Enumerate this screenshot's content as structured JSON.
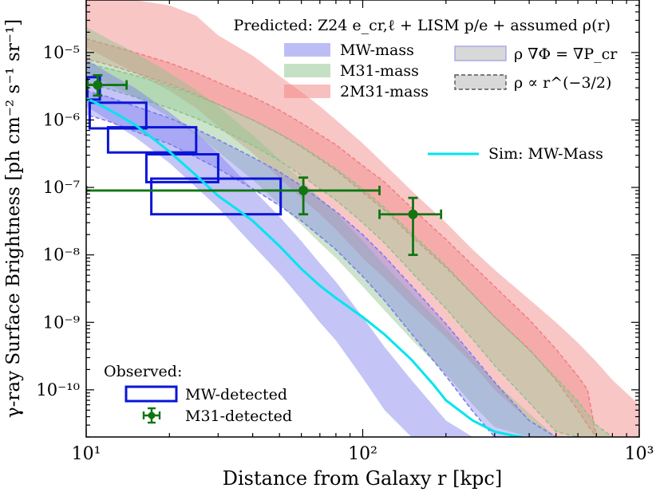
{
  "chart_data": {
    "type": "line",
    "xlabel": "Distance from Galaxy r [kpc]",
    "ylabel": "γ-ray Surface Brightness [ph cm⁻² s⁻¹ sr⁻¹]",
    "x_scale": "log",
    "y_scale": "log",
    "xlim": [
      10,
      1000
    ],
    "ylim": [
      2e-11,
      6e-05
    ],
    "x_ticks": [
      {
        "value": 10,
        "label": "10¹"
      },
      {
        "value": 100,
        "label": "10²"
      },
      {
        "value": 1000,
        "label": "10³"
      }
    ],
    "y_ticks": [
      {
        "value": 1e-10,
        "label": "10⁻¹⁰"
      },
      {
        "value": 1e-09,
        "label": "10⁻⁹"
      },
      {
        "value": 1e-08,
        "label": "10⁻⁸"
      },
      {
        "value": 1e-07,
        "label": "10⁻⁷"
      },
      {
        "value": 1e-06,
        "label": "10⁻⁶"
      },
      {
        "value": 1e-05,
        "label": "10⁻⁵"
      }
    ],
    "legend_title": "Predicted: Z24 e_cr,ℓ + LISM p/e + assumed ρ(r)",
    "legend_entries": [
      {
        "label": "MW-mass",
        "color": "#7c7cee"
      },
      {
        "label": "M31-mass",
        "color": "#8cc48c"
      },
      {
        "label": "2M31-mass",
        "color": "#f28080"
      },
      {
        "label": "ρ ∇Φ = ∇P_cr",
        "style": "solid-band"
      },
      {
        "label": "ρ ∝ r^(−3/2)",
        "style": "dashed-band"
      }
    ],
    "sim_label": "Sim: MW-Mass",
    "observed_title": "Observed:",
    "observed_entries": [
      {
        "label": "MW-detected",
        "color": "#0a14d8"
      },
      {
        "label": "M31-detected",
        "color": "#117511"
      }
    ],
    "bands": [
      {
        "name": "2M31-mass",
        "style": "solid",
        "color": "#f28080",
        "x": [
          10,
          12,
          15,
          20,
          25,
          30,
          40,
          50,
          60,
          70,
          80,
          100,
          120,
          150,
          200,
          250,
          300,
          400,
          500,
          600,
          700,
          800,
          1000
        ],
        "hi": [
          6e-05,
          6e-05,
          6e-05,
          5e-05,
          3.5e-05,
          1.8e-05,
          9e-06,
          4.5e-06,
          2.6e-06,
          1.6e-06,
          1e-06,
          4.5e-07,
          2.2e-07,
          9e-08,
          3e-08,
          1.2e-08,
          6e-09,
          2.2e-09,
          1e-09,
          5e-10,
          2.6e-10,
          1.4e-10,
          6e-11
        ],
        "lo": [
          1.2e-05,
          8e-06,
          5e-06,
          2.7e-06,
          1.5e-06,
          8e-07,
          3.2e-07,
          1.4e-07,
          7e-08,
          4e-08,
          2.4e-08,
          9e-09,
          4.5e-09,
          1.8e-09,
          6e-10,
          2.4e-10,
          1e-10,
          3.5e-11,
          2e-11,
          2e-11,
          2e-11,
          2e-11,
          2e-11
        ]
      },
      {
        "name": "2M31-mass",
        "style": "dashed",
        "color": "#f28080",
        "x": [
          10,
          12,
          15,
          20,
          25,
          30,
          40,
          50,
          60,
          80,
          100,
          120,
          150,
          200,
          250,
          300,
          400,
          500,
          600,
          650,
          700
        ],
        "hi": [
          1.6e-05,
          1.3e-05,
          1e-05,
          7e-06,
          5e-06,
          3.6e-06,
          2.2e-06,
          1.4e-06,
          9e-07,
          4.3e-07,
          2.1e-07,
          1.2e-07,
          5e-08,
          1.7e-08,
          7e-09,
          3.4e-09,
          1.1e-09,
          4e-10,
          1.6e-10,
          1e-10,
          2e-11
        ],
        "lo": [
          8e-06,
          6.6e-06,
          5e-06,
          3.4e-06,
          2.4e-06,
          1.7e-06,
          1e-06,
          6.2e-07,
          4e-07,
          1.8e-07,
          8.5e-08,
          4.6e-08,
          1.9e-08,
          6.5e-09,
          2.6e-09,
          1.2e-09,
          4e-10,
          1.4e-10,
          5e-11,
          3e-11,
          2e-11
        ]
      },
      {
        "name": "M31-mass",
        "style": "solid",
        "color": "#8cc48c",
        "x": [
          10,
          12,
          15,
          20,
          25,
          30,
          40,
          50,
          60,
          70,
          80,
          100,
          120,
          150,
          200,
          250,
          300,
          400,
          500,
          600,
          700
        ],
        "hi": [
          2.4e-05,
          1.6e-05,
          1e-05,
          5e-06,
          2.8e-06,
          1.6e-06,
          6e-07,
          2.6e-07,
          1.3e-07,
          7e-08,
          4.2e-08,
          1.6e-08,
          7e-09,
          2.7e-09,
          8e-10,
          3e-10,
          1.3e-10,
          4.5e-11,
          2e-11,
          2e-11,
          2e-11
        ],
        "lo": [
          5e-06,
          3.4e-06,
          2.2e-06,
          1.1e-06,
          6e-07,
          3.4e-07,
          1.3e-07,
          5.6e-08,
          2.8e-08,
          1.5e-08,
          9e-09,
          3.4e-09,
          1.5e-09,
          5.6e-10,
          1.7e-10,
          6e-11,
          2.8e-11,
          2e-11,
          2e-11,
          2e-11,
          2e-11
        ]
      },
      {
        "name": "M31-mass",
        "style": "dashed",
        "color": "#8cc48c",
        "x": [
          10,
          12,
          15,
          20,
          25,
          30,
          40,
          50,
          60,
          80,
          100,
          120,
          150,
          200,
          250,
          300,
          400,
          500,
          600,
          700,
          800
        ],
        "hi": [
          7e-06,
          5.8e-06,
          4.6e-06,
          3.2e-06,
          2.3e-06,
          1.7e-06,
          1e-06,
          6.3e-07,
          4.1e-07,
          1.9e-07,
          9.5e-08,
          5e-08,
          2.1e-08,
          6.9e-09,
          2.6e-09,
          1.2e-09,
          3.9e-10,
          1.5e-10,
          6.8e-11,
          3e-11,
          2e-11
        ],
        "lo": [
          3.6e-06,
          2.9e-06,
          2.2e-06,
          1.5e-06,
          1.06e-06,
          7.6e-07,
          4.2e-07,
          2.5e-07,
          1.5e-07,
          6.5e-08,
          3e-08,
          1.5e-08,
          5.6e-09,
          1.6e-09,
          5.6e-10,
          2.3e-10,
          6.5e-11,
          2.4e-11,
          2e-11,
          2e-11,
          2e-11
        ]
      },
      {
        "name": "MW-mass",
        "style": "solid",
        "color": "#7c7cee",
        "x": [
          10,
          12,
          15,
          20,
          25,
          30,
          40,
          50,
          60,
          70,
          80,
          100,
          120,
          150,
          200,
          250,
          300
        ],
        "hi": [
          8e-06,
          5e-06,
          3e-06,
          1.3e-06,
          6.3e-07,
          3.2e-07,
          9.4e-08,
          3.7e-08,
          1.6e-08,
          7.5e-09,
          4e-09,
          1.2e-09,
          4.3e-10,
          1.4e-10,
          3.5e-11,
          2e-11,
          2e-11
        ],
        "lo": [
          1.6e-06,
          1e-06,
          5.6e-07,
          2.3e-07,
          1e-07,
          5e-08,
          1.4e-08,
          5.3e-09,
          2.2e-09,
          1e-09,
          5.4e-10,
          1.5e-10,
          5e-11,
          2e-11,
          2e-11,
          2e-11,
          2e-11
        ]
      },
      {
        "name": "MW-mass",
        "style": "dashed",
        "color": "#7c7cee",
        "x": [
          10,
          12,
          15,
          20,
          25,
          30,
          40,
          50,
          60,
          80,
          100,
          120,
          150,
          200,
          250,
          300,
          400,
          500,
          600
        ],
        "hi": [
          2.7e-06,
          2.2e-06,
          1.6e-06,
          1.07e-06,
          7.3e-07,
          5.1e-07,
          2.8e-07,
          1.7e-07,
          1.06e-07,
          4.4e-08,
          2e-08,
          9.5e-09,
          3.5e-09,
          9.5e-10,
          3.2e-10,
          1.3e-10,
          3.5e-11,
          2e-11,
          2e-11
        ],
        "lo": [
          1.2e-06,
          9.6e-07,
          6.8e-07,
          4.4e-07,
          2.8e-07,
          1.9e-07,
          9.6e-08,
          5.4e-08,
          3.2e-08,
          1.2e-08,
          4.8e-09,
          2.1e-09,
          6.8e-10,
          1.6e-10,
          4.8e-11,
          2e-11,
          2e-11,
          2e-11,
          2e-11
        ]
      }
    ],
    "sim_line": {
      "name": "Sim: MW-Mass",
      "color": "#00e5ee",
      "x": [
        10,
        11,
        13,
        15,
        18,
        20,
        25,
        30,
        35,
        40,
        50,
        60,
        70,
        80,
        100,
        120,
        150,
        180,
        200,
        250,
        300,
        350,
        380
      ],
      "y": [
        2.1e-06,
        1.75e-06,
        1.2e-06,
        8.5e-07,
        4.8e-07,
        3.4e-07,
        1.5e-07,
        7.5e-08,
        4.8e-08,
        3.2e-08,
        1.35e-08,
        6.2e-09,
        3.5e-09,
        2.3e-09,
        1.2e-09,
        6.6e-10,
        2.8e-10,
        1.2e-10,
        7e-11,
        3.5e-11,
        2.4e-11,
        2.1e-11,
        2e-11
      ]
    },
    "mw_detected_boxes": [
      {
        "x_range": [
          10.1,
          11.2
        ],
        "y_range": [
          2e-06,
          4.3e-06
        ]
      },
      {
        "x_range": [
          10.3,
          16.5
        ],
        "y_range": [
          7.5e-07,
          1.8e-06
        ]
      },
      {
        "x_range": [
          12.0,
          25.0
        ],
        "y_range": [
          3.3e-07,
          7.8e-07
        ]
      },
      {
        "x_range": [
          16.5,
          30.0
        ],
        "y_range": [
          1.2e-07,
          3.1e-07
        ]
      },
      {
        "x_range": [
          17.2,
          50.5
        ],
        "y_range": [
          4e-08,
          1.35e-07
        ]
      }
    ],
    "m31_detected_points": [
      {
        "x": 11.0,
        "y": 3.3e-06,
        "x_err": [
          10.1,
          14.0
        ],
        "y_err": [
          2.3e-06,
          4.6e-06
        ]
      },
      {
        "x": 61.0,
        "y": 9e-08,
        "x_err": [
          10.0,
          115.0
        ],
        "y_err": [
          4e-08,
          1.4e-07
        ]
      },
      {
        "x": 152.0,
        "y": 4e-08,
        "x_err": [
          115.0,
          192.0
        ],
        "y_err": [
          1e-08,
          7e-08
        ]
      }
    ]
  }
}
